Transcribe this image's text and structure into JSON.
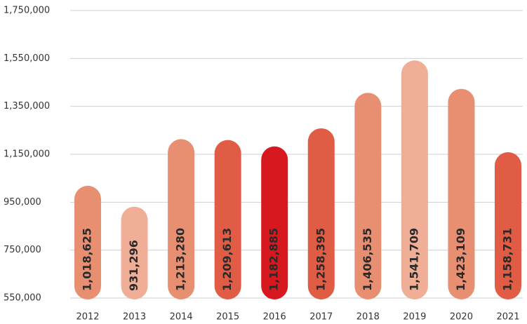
{
  "chart_data": {
    "type": "bar",
    "categories": [
      "2012",
      "2013",
      "2014",
      "2015",
      "2016",
      "2017",
      "2018",
      "2019",
      "2020",
      "2021"
    ],
    "values": [
      1018625,
      931296,
      1213280,
      1209613,
      1182885,
      1258395,
      1406535,
      1541709,
      1423109,
      1158731
    ],
    "value_labels": [
      "1,018,625",
      "931,296",
      "1,213,280",
      "1,209,613",
      "1,182,885",
      "1,258,395",
      "1,406,535",
      "1,541,709",
      "1,423,109",
      "1,158,731"
    ],
    "colors": [
      "#e88f72",
      "#f0ae96",
      "#e88f72",
      "#e05c44",
      "#d7191f",
      "#e05c44",
      "#e88f72",
      "#f0ae96",
      "#e88f72",
      "#e05c44"
    ],
    "ylim": [
      550000,
      1750000
    ],
    "yticks": [
      {
        "value": 550000,
        "label": "550,000"
      },
      {
        "value": 750000,
        "label": "750,000"
      },
      {
        "value": 950000,
        "label": "950,000"
      },
      {
        "value": 1150000,
        "label": "1,150,000"
      },
      {
        "value": 1350000,
        "label": "1,350,000"
      },
      {
        "value": 1550000,
        "label": "1,550,000"
      },
      {
        "value": 1750000,
        "label": "1,750,000"
      }
    ],
    "grid": true
  }
}
